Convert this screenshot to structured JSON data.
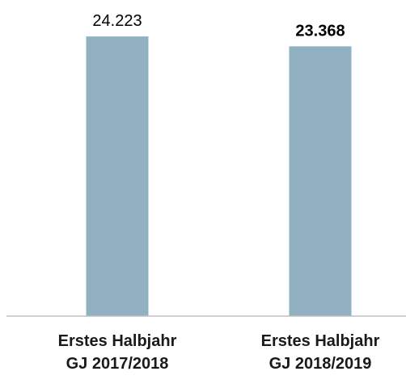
{
  "chart_data": {
    "type": "bar",
    "categories": [
      "Erstes Halbjahr\nGJ 2017/2018",
      "Erstes Halbjahr\nGJ 2018/2019"
    ],
    "values": [
      24223,
      23368
    ],
    "value_labels": [
      "24.223",
      "23.368"
    ],
    "value_label_bold": [
      false,
      true
    ],
    "color": "#91b0c1",
    "ylim": [
      0,
      25000
    ]
  }
}
